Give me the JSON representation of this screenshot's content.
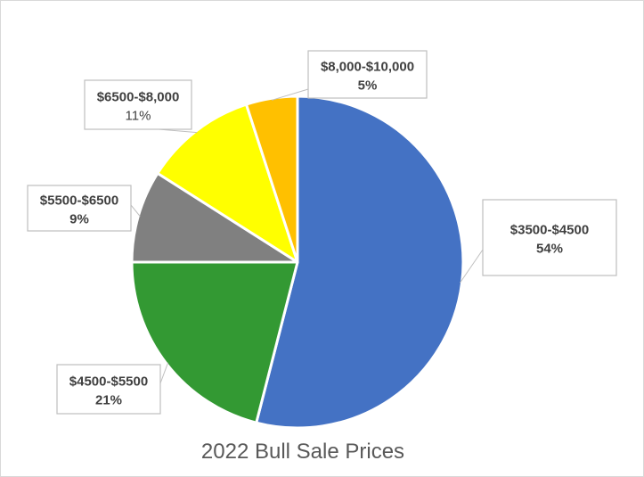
{
  "chart_data": {
    "type": "pie",
    "title": "2022 Bull Sale Prices",
    "start_angle_deg": 0,
    "direction": "clockwise",
    "slices": [
      {
        "label": "$3500-$4500",
        "value": 54,
        "percent_label": "54%",
        "color": "#4472c4",
        "pct_bold": true
      },
      {
        "label": "$4500-$5500",
        "value": 21,
        "percent_label": "21%",
        "color": "#339933",
        "pct_bold": true
      },
      {
        "label": "$5500-$6500",
        "value": 9,
        "percent_label": "9%",
        "color": "#808080",
        "pct_bold": true
      },
      {
        "label": "$6500-$8,000",
        "value": 11,
        "percent_label": "11%",
        "color": "#ffff00",
        "pct_bold": false
      },
      {
        "label": "$8,000-$10,000",
        "value": 5,
        "percent_label": "5%",
        "color": "#ffc000",
        "pct_bold": true
      }
    ],
    "data_labels": "callouts"
  }
}
